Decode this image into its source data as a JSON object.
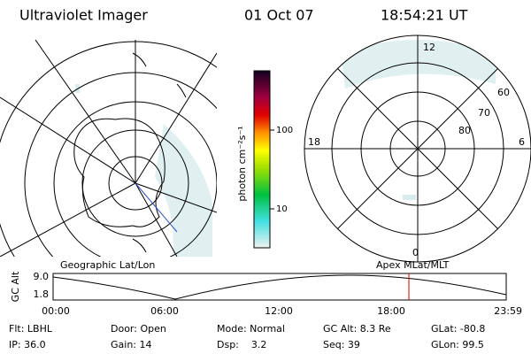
{
  "header": {
    "title": "Ultraviolet Imager",
    "date": "01 Oct 07",
    "time": "18:54:21 UT"
  },
  "colorbar": {
    "label": "photon cm⁻²s⁻¹",
    "ticks": [
      "100",
      "10"
    ]
  },
  "geo_map": {
    "caption": "Geographic Lat/Lon"
  },
  "mlt_map": {
    "caption": "Apex MLat/MLT",
    "mlt_labels": [
      "12",
      "18",
      "6",
      "0"
    ],
    "lat_labels": [
      "60",
      "70",
      "80"
    ]
  },
  "altitude_plot": {
    "ylabel": "GC Alt",
    "yticks": [
      "9.0",
      "1.8"
    ],
    "xticks": [
      "00:00",
      "06:00",
      "12:00",
      "18:00",
      "23:59"
    ]
  },
  "footer": {
    "rows": [
      [
        "Flt: LBHL",
        "Door: Open",
        "Mode: Normal",
        "GC Alt: 8.3 Re",
        "GLat: -80.8"
      ],
      [
        "IP: 36.0",
        "Gain: 14",
        "Dsp:    3.2",
        "Seq: 39",
        "GLon: 99.5"
      ]
    ]
  }
}
